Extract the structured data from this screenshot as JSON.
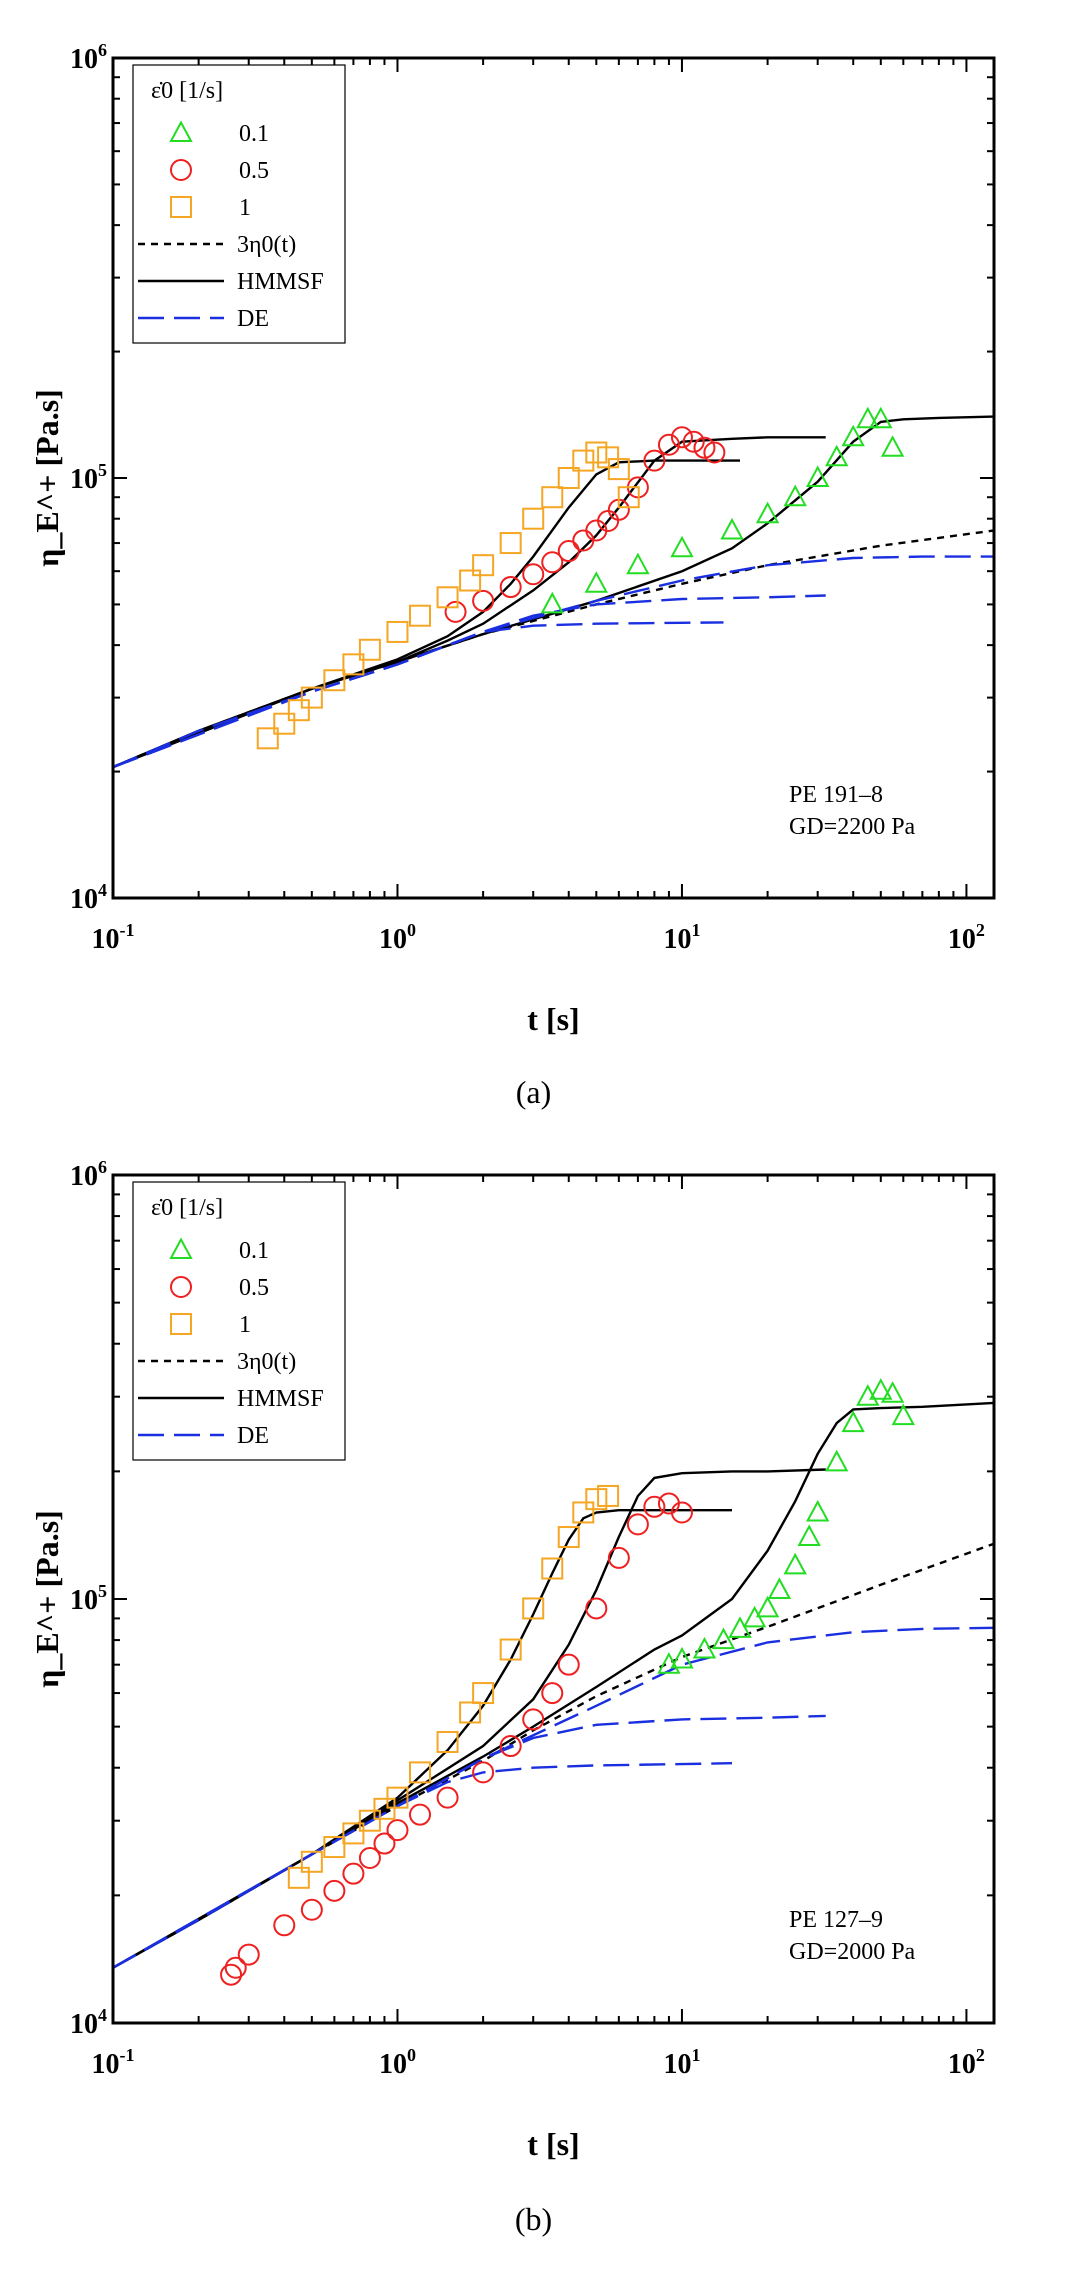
{
  "chart_data": [
    {
      "type": "scatter",
      "panel_label": "(a)",
      "annotation": [
        "PE 191–8",
        "GD=2200 Pa"
      ],
      "xlabel": "t [s]",
      "ylabel": "η_E^+ [Pa.s]",
      "x_scale": "log",
      "y_scale": "log",
      "xlim": [
        0.1,
        125
      ],
      "ylim": [
        10000,
        1000000
      ],
      "x_ticks": [
        "10^-1",
        "10^0",
        "10^1",
        "10^2"
      ],
      "y_ticks": [
        "10^4",
        "10^5",
        "10^6"
      ],
      "legend": {
        "title": "ε̇0 [1/s]",
        "placement": "top-left",
        "entries": [
          "0.1",
          "0.5",
          "1",
          "3η0(t)",
          "HMMSF",
          "DE"
        ]
      },
      "series": [
        {
          "name": "0.1",
          "kind": "marker",
          "marker": "triangle",
          "color": "#22dd22",
          "x": [
            3.5,
            5,
            7,
            10,
            15,
            20,
            25,
            30,
            35,
            40,
            45,
            50,
            55
          ],
          "y": [
            50000,
            56000,
            62000,
            68000,
            75000,
            82000,
            90000,
            100000,
            112000,
            125000,
            138000,
            138000,
            118000
          ]
        },
        {
          "name": "0.5",
          "kind": "marker",
          "marker": "circle",
          "color": "#ee2020",
          "x": [
            1.6,
            2,
            2.5,
            3,
            3.5,
            4,
            4.5,
            5,
            5.5,
            6,
            7,
            8,
            9,
            10,
            11,
            12,
            13
          ],
          "y": [
            48000,
            51000,
            55000,
            59000,
            63000,
            67000,
            71000,
            75000,
            79000,
            84000,
            95000,
            110000,
            120000,
            125000,
            122000,
            118000,
            115000
          ]
        },
        {
          "name": "1",
          "kind": "marker",
          "marker": "square",
          "color": "#f5a623",
          "x": [
            0.35,
            0.4,
            0.45,
            0.5,
            0.6,
            0.7,
            0.8,
            1,
            1.2,
            1.5,
            1.8,
            2,
            2.5,
            3,
            3.5,
            4,
            4.5,
            5,
            5.5,
            6,
            6.5
          ],
          "y": [
            24000,
            26000,
            28000,
            30000,
            33000,
            36000,
            39000,
            43000,
            47000,
            52000,
            57000,
            62000,
            70000,
            80000,
            90000,
            100000,
            110000,
            115000,
            112000,
            105000,
            90000
          ]
        },
        {
          "name": "3η0(t)",
          "kind": "line",
          "dash": "short",
          "color": "#000000",
          "x": [
            0.1,
            0.2,
            0.5,
            1,
            2,
            5,
            10,
            20,
            50,
            125
          ],
          "y": [
            20500,
            25000,
            31500,
            36500,
            42500,
            50000,
            56000,
            62000,
            69000,
            75000
          ]
        },
        {
          "name": "HMMSF",
          "kind": "line",
          "dash": "solid",
          "color": "#000000",
          "x": [
            0.1,
            0.2,
            0.5,
            1,
            1.5,
            2,
            2.5,
            3,
            4,
            5,
            6,
            8,
            10,
            12,
            16
          ],
          "y": [
            20500,
            25000,
            31500,
            37000,
            42000,
            48000,
            56000,
            65000,
            85000,
            102000,
            109000,
            110000,
            110000,
            110000,
            110000
          ]
        },
        {
          "name": "HMMSF",
          "kind": "line",
          "dash": "solid",
          "color": "#000000",
          "x": [
            0.1,
            0.2,
            0.5,
            1,
            1.5,
            2,
            3,
            4,
            5,
            6,
            8,
            10,
            15,
            20,
            32
          ],
          "y": [
            20500,
            25000,
            31500,
            36500,
            41000,
            45000,
            54000,
            63000,
            73000,
            85000,
            110000,
            122000,
            124000,
            125000,
            125000
          ]
        },
        {
          "name": "HMMSF",
          "kind": "line",
          "dash": "solid",
          "color": "#000000",
          "x": [
            0.1,
            0.5,
            1,
            2,
            5,
            10,
            15,
            20,
            30,
            40,
            50,
            60,
            80,
            125
          ],
          "y": [
            20500,
            31500,
            36500,
            42500,
            51000,
            60000,
            68000,
            78000,
            98000,
            122000,
            136000,
            138000,
            139000,
            140000
          ]
        },
        {
          "name": "DE",
          "kind": "line",
          "dash": "long",
          "color": "#1a2fe0",
          "x": [
            0.1,
            0.2,
            0.5,
            1,
            1.5,
            2,
            3,
            5,
            10,
            14
          ],
          "y": [
            20500,
            25000,
            31000,
            36000,
            40000,
            43000,
            44500,
            45000,
            45200,
            45300
          ]
        },
        {
          "name": "DE",
          "kind": "line",
          "dash": "long",
          "color": "#1a2fe0",
          "x": [
            0.1,
            0.5,
            1,
            2,
            3,
            5,
            10,
            20,
            32
          ],
          "y": [
            20500,
            31000,
            36000,
            43000,
            47000,
            50000,
            51500,
            52000,
            52500
          ]
        },
        {
          "name": "DE",
          "kind": "line",
          "dash": "long",
          "color": "#1a2fe0",
          "x": [
            0.1,
            0.5,
            1,
            2,
            5,
            10,
            20,
            40,
            70,
            125
          ],
          "y": [
            20500,
            31000,
            36000,
            43000,
            51000,
            57000,
            62000,
            64500,
            65000,
            65000
          ]
        }
      ]
    },
    {
      "type": "scatter",
      "panel_label": "(b)",
      "annotation": [
        "PE 127–9",
        "GD=2000 Pa"
      ],
      "xlabel": "t [s]",
      "ylabel": "η_E^+ [Pa.s]",
      "x_scale": "log",
      "y_scale": "log",
      "xlim": [
        0.1,
        125
      ],
      "ylim": [
        10000,
        1000000
      ],
      "x_ticks": [
        "10^-1",
        "10^0",
        "10^1",
        "10^2"
      ],
      "y_ticks": [
        "10^4",
        "10^5",
        "10^6"
      ],
      "legend": {
        "title": "ε̇0 [1/s]",
        "placement": "top-left",
        "entries": [
          "0.1",
          "0.5",
          "1",
          "3η0(t)",
          "HMMSF",
          "DE"
        ]
      },
      "series": [
        {
          "name": "0.1",
          "kind": "marker",
          "marker": "triangle",
          "color": "#22dd22",
          "x": [
            9,
            10,
            12,
            14,
            16,
            18,
            20,
            22,
            25,
            28,
            30,
            35,
            40,
            45,
            50,
            55,
            60
          ],
          "y": [
            70000,
            72000,
            76000,
            80000,
            85000,
            90000,
            95000,
            105000,
            120000,
            140000,
            160000,
            210000,
            260000,
            300000,
            310000,
            305000,
            270000
          ]
        },
        {
          "name": "0.5",
          "kind": "marker",
          "marker": "circle",
          "color": "#ee2020",
          "x": [
            0.26,
            0.27,
            0.3,
            0.4,
            0.5,
            0.6,
            0.7,
            0.8,
            0.9,
            1,
            1.2,
            1.5,
            2,
            2.5,
            3,
            3.5,
            4,
            5,
            6,
            7,
            8,
            9,
            10
          ],
          "y": [
            13000,
            13500,
            14500,
            17000,
            18500,
            20500,
            22500,
            24500,
            26500,
            28500,
            31000,
            34000,
            39000,
            45000,
            52000,
            60000,
            70000,
            95000,
            125000,
            150000,
            165000,
            168000,
            160000
          ]
        },
        {
          "name": "1",
          "kind": "marker",
          "marker": "square",
          "color": "#f5a623",
          "x": [
            0.45,
            0.5,
            0.6,
            0.7,
            0.8,
            0.9,
            1,
            1.2,
            1.5,
            1.8,
            2,
            2.5,
            3,
            3.5,
            4,
            4.5,
            5,
            5.5
          ],
          "y": [
            22000,
            24000,
            26000,
            28000,
            30000,
            32000,
            34000,
            39000,
            46000,
            54000,
            60000,
            76000,
            95000,
            118000,
            140000,
            160000,
            172000,
            175000
          ]
        },
        {
          "name": "3η0(t)",
          "kind": "line",
          "dash": "short",
          "color": "#000000",
          "x": [
            0.1,
            0.2,
            0.5,
            1,
            2,
            3,
            5,
            10,
            20,
            50,
            125
          ],
          "y": [
            13500,
            17500,
            25000,
            32500,
            41500,
            49000,
            59000,
            73000,
            86000,
            108000,
            135000
          ]
        },
        {
          "name": "HMMSF",
          "kind": "line",
          "dash": "solid",
          "color": "#000000",
          "x": [
            0.1,
            0.2,
            0.5,
            1,
            1.5,
            2,
            2.5,
            3,
            3.5,
            4,
            4.5,
            5,
            6,
            8,
            10,
            15
          ],
          "y": [
            13500,
            17500,
            25000,
            34000,
            44000,
            56000,
            72000,
            92000,
            115000,
            138000,
            155000,
            160000,
            162000,
            162000,
            162000,
            162000
          ]
        },
        {
          "name": "HMMSF",
          "kind": "line",
          "dash": "solid",
          "color": "#000000",
          "x": [
            0.1,
            0.2,
            0.5,
            1,
            2,
            3,
            4,
            5,
            6,
            7,
            8,
            10,
            15,
            20,
            32
          ],
          "y": [
            13500,
            17500,
            25000,
            33500,
            45000,
            58000,
            78000,
            105000,
            140000,
            175000,
            193000,
            198000,
            200000,
            200000,
            202000
          ]
        },
        {
          "name": "HMMSF",
          "kind": "line",
          "dash": "solid",
          "color": "#000000",
          "x": [
            0.1,
            0.5,
            1,
            2,
            3,
            5,
            8,
            10,
            15,
            20,
            25,
            30,
            35,
            40,
            50,
            70,
            125
          ],
          "y": [
            13500,
            25000,
            33000,
            42500,
            50000,
            62000,
            76000,
            82000,
            100000,
            130000,
            170000,
            220000,
            260000,
            280000,
            282000,
            284000,
            290000
          ]
        },
        {
          "name": "DE",
          "kind": "line",
          "dash": "long",
          "color": "#1a2fe0",
          "x": [
            0.1,
            0.2,
            0.5,
            1,
            1.5,
            2,
            3,
            5,
            10,
            15
          ],
          "y": [
            13500,
            17500,
            25000,
            32500,
            37000,
            39000,
            40000,
            40500,
            40800,
            41000
          ]
        },
        {
          "name": "DE",
          "kind": "line",
          "dash": "long",
          "color": "#1a2fe0",
          "x": [
            0.1,
            0.5,
            1,
            2,
            3,
            5,
            10,
            20,
            32
          ],
          "y": [
            13500,
            25000,
            32500,
            42000,
            47000,
            50500,
            52000,
            52500,
            53000
          ]
        },
        {
          "name": "DE",
          "kind": "line",
          "dash": "long",
          "color": "#1a2fe0",
          "x": [
            0.1,
            0.5,
            1,
            2,
            5,
            10,
            20,
            40,
            70,
            125
          ],
          "y": [
            13500,
            25000,
            32500,
            42000,
            56000,
            70000,
            79000,
            83500,
            85000,
            85500
          ]
        }
      ]
    }
  ]
}
